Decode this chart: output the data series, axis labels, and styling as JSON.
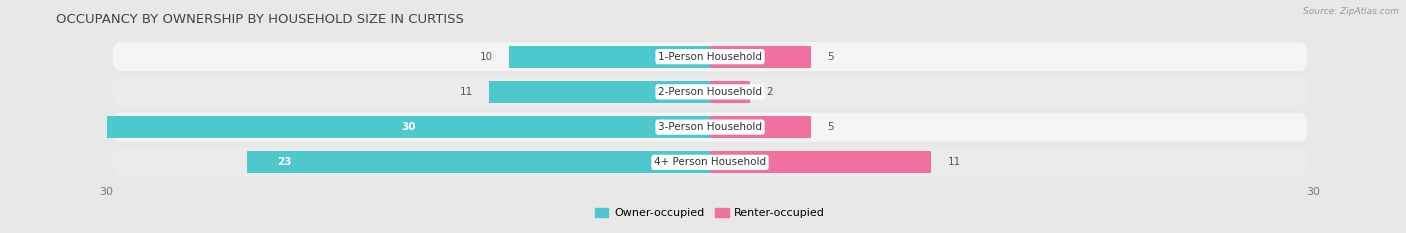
{
  "title": "OCCUPANCY BY OWNERSHIP BY HOUSEHOLD SIZE IN CURTISS",
  "source": "Source: ZipAtlas.com",
  "categories": [
    "1-Person Household",
    "2-Person Household",
    "3-Person Household",
    "4+ Person Household"
  ],
  "owner_values": [
    10,
    11,
    30,
    23
  ],
  "renter_values": [
    5,
    2,
    5,
    11
  ],
  "owner_color": "#4DC8CC",
  "renter_color": "#F070A0",
  "x_max": 30,
  "x_min": -30,
  "bg_color": "#e8e8e8",
  "row_bg_colors": [
    "#f5f5f5",
    "#ebebeb",
    "#f5f5f5",
    "#ebebeb"
  ],
  "title_fontsize": 9.5,
  "bar_label_fontsize": 7.5,
  "axis_label_fontsize": 8,
  "legend_fontsize": 8
}
